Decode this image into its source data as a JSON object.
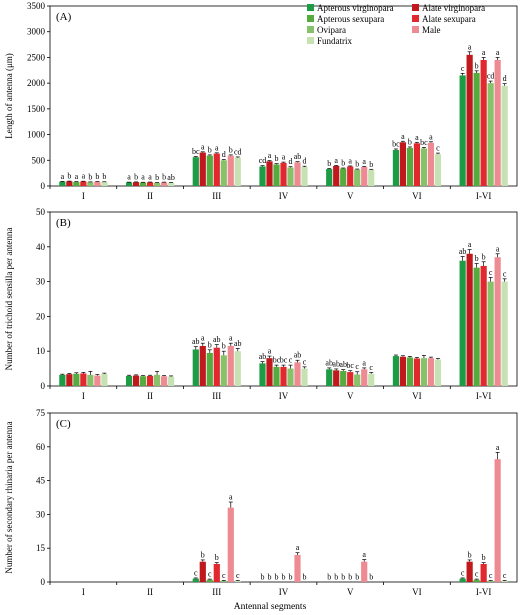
{
  "figure": {
    "xlabel": "Antennal segments"
  },
  "legend": [
    {
      "name": "Apterous virginopara",
      "color": "#1e9b45"
    },
    {
      "name": "Alate virginopara",
      "color": "#c0181d"
    },
    {
      "name": "Apterous sexupara",
      "color": "#55ab3d"
    },
    {
      "name": "Alate sexupara",
      "color": "#e2282f"
    },
    {
      "name": "Ovipara",
      "color": "#87c26b"
    },
    {
      "name": "Male",
      "color": "#ee8b92"
    },
    {
      "name": "Fundatrix",
      "color": "#c6e2b2"
    }
  ],
  "chart_data": [
    {
      "panel": "(A)",
      "type": "bar",
      "ylabel": "Length of antenna (μm)",
      "ylim": [
        0,
        3500
      ],
      "yticks": [
        0,
        500,
        1000,
        1500,
        2000,
        2500,
        3000,
        3500
      ],
      "categories": [
        "I",
        "II",
        "III",
        "IV",
        "V",
        "VI",
        "I-VI"
      ],
      "series": [
        {
          "name": "Apterous virginopara",
          "values": [
            85,
            70,
            560,
            380,
            330,
            700,
            2150
          ],
          "errors": [
            5,
            5,
            15,
            15,
            10,
            20,
            40
          ],
          "letters": [
            "a",
            "a",
            "bc",
            "cd",
            "b",
            "bc",
            "c"
          ]
        },
        {
          "name": "Alate virginopara",
          "values": [
            90,
            75,
            650,
            480,
            390,
            850,
            2550
          ],
          "errors": [
            5,
            5,
            15,
            15,
            10,
            20,
            60
          ],
          "letters": [
            "b",
            "b",
            "a",
            "a",
            "a",
            "a",
            "a"
          ]
        },
        {
          "name": "Apterous sexupara",
          "values": [
            80,
            68,
            590,
            420,
            340,
            740,
            2200
          ],
          "errors": [
            5,
            5,
            15,
            15,
            10,
            20,
            40
          ],
          "letters": [
            "a",
            "a",
            "b",
            "b",
            "b",
            "b",
            "b"
          ]
        },
        {
          "name": "Alate sexupara",
          "values": [
            88,
            72,
            630,
            450,
            380,
            830,
            2450
          ],
          "errors": [
            5,
            5,
            15,
            15,
            10,
            20,
            50
          ],
          "letters": [
            "a",
            "a",
            "a",
            "a",
            "a",
            "a",
            "a"
          ]
        },
        {
          "name": "Ovipara",
          "values": [
            75,
            62,
            500,
            360,
            320,
            730,
            2000
          ],
          "errors": [
            5,
            5,
            15,
            15,
            10,
            20,
            40
          ],
          "letters": [
            "b",
            "b",
            "d",
            "d",
            "b",
            "bc",
            "cd"
          ]
        },
        {
          "name": "Male",
          "values": [
            82,
            70,
            590,
            460,
            370,
            840,
            2450
          ],
          "errors": [
            5,
            5,
            15,
            15,
            10,
            20,
            50
          ],
          "letters": [
            "b",
            "b",
            "b",
            "ab",
            "a",
            "a",
            "a"
          ]
        },
        {
          "name": "Fundatrix",
          "values": [
            78,
            65,
            550,
            370,
            315,
            620,
            1950
          ],
          "errors": [
            5,
            5,
            15,
            15,
            10,
            20,
            40
          ],
          "letters": [
            "b",
            "ab",
            "cd",
            "d",
            "b",
            "c",
            "d"
          ]
        }
      ]
    },
    {
      "panel": "(B)",
      "type": "bar",
      "ylabel": "Number of trichoid sensilla per antenna",
      "ylim": [
        0,
        50
      ],
      "yticks": [
        0,
        10,
        20,
        30,
        40,
        50
      ],
      "categories": [
        "I",
        "II",
        "III",
        "IV",
        "V",
        "VI",
        "I-VI"
      ],
      "series": [
        {
          "name": "Apterous virginopara",
          "values": [
            3.2,
            2.9,
            10.5,
            6.5,
            4.8,
            8.6,
            36.0
          ],
          "errors": [
            0.2,
            0.2,
            0.8,
            0.5,
            0.4,
            0.3,
            1.2
          ],
          "letters": [
            "",
            "",
            "ab",
            "ab",
            "ab",
            "",
            "ab"
          ]
        },
        {
          "name": "Alate virginopara",
          "values": [
            3.4,
            3.0,
            11.5,
            8.0,
            4.5,
            8.4,
            38.0
          ],
          "errors": [
            0.2,
            0.2,
            0.8,
            0.6,
            0.4,
            0.3,
            1.2
          ],
          "letters": [
            "",
            "",
            "a",
            "a",
            "ab",
            "",
            "a"
          ]
        },
        {
          "name": "Apterous sexupara",
          "values": [
            3.5,
            2.8,
            9.5,
            5.5,
            4.3,
            8.2,
            34.0
          ],
          "errors": [
            0.3,
            0.2,
            0.9,
            0.5,
            0.4,
            0.3,
            1.2
          ],
          "letters": [
            "",
            "",
            "b",
            "bc",
            "ab",
            "",
            "b"
          ]
        },
        {
          "name": "Alate sexupara",
          "values": [
            3.6,
            2.9,
            11.0,
            5.5,
            4.0,
            7.9,
            34.5
          ],
          "errors": [
            0.3,
            0.2,
            0.9,
            0.5,
            0.4,
            0.3,
            1.2
          ],
          "letters": [
            "",
            "",
            "ab",
            "bc",
            "bc",
            "",
            "b"
          ]
        },
        {
          "name": "Ovipara",
          "values": [
            3.2,
            3.2,
            8.8,
            5.0,
            3.3,
            8.0,
            30.0
          ],
          "errors": [
            1.0,
            1.0,
            1.2,
            1.0,
            0.8,
            0.8,
            1.2
          ],
          "letters": [
            "",
            "",
            "b",
            "c",
            "c",
            "",
            "c"
          ]
        },
        {
          "name": "Male",
          "values": [
            3.0,
            2.8,
            11.5,
            6.8,
            4.8,
            8.0,
            37.0
          ],
          "errors": [
            0.3,
            0.2,
            0.8,
            0.6,
            0.4,
            0.3,
            1.0
          ],
          "letters": [
            "",
            "",
            "a",
            "ab",
            "a",
            "",
            "a"
          ]
        },
        {
          "name": "Fundatrix",
          "values": [
            3.5,
            2.7,
            10.0,
            5.0,
            3.5,
            7.6,
            30.0
          ],
          "errors": [
            0.2,
            0.2,
            0.8,
            0.5,
            0.4,
            0.3,
            0.8
          ],
          "letters": [
            "",
            "",
            "ab",
            "c",
            "c",
            "",
            "c"
          ]
        }
      ]
    },
    {
      "panel": "(C)",
      "type": "bar",
      "ylabel": "Number of secondary rhinaria per antenna",
      "ylim": [
        0,
        75
      ],
      "yticks": [
        0,
        15,
        30,
        45,
        60,
        75
      ],
      "categories": [
        "I",
        "II",
        "III",
        "IV",
        "V",
        "VI",
        "I-VI"
      ],
      "series": [
        {
          "name": "Apterous virginopara",
          "values": [
            0,
            0,
            1.5,
            0,
            0,
            0,
            1.5
          ],
          "errors": [
            0,
            0,
            0.3,
            0,
            0,
            0,
            0.3
          ],
          "letters": [
            "",
            "",
            "c",
            "b",
            "b",
            "",
            "c"
          ]
        },
        {
          "name": "Alate virginopara",
          "values": [
            0,
            0,
            9.0,
            0,
            0,
            0,
            9.0
          ],
          "errors": [
            0,
            0,
            0.8,
            0,
            0,
            0,
            0.8
          ],
          "letters": [
            "",
            "",
            "b",
            "b",
            "b",
            "",
            "b"
          ]
        },
        {
          "name": "Apterous sexupara",
          "values": [
            0,
            0,
            1.0,
            0,
            0,
            0,
            1.0
          ],
          "errors": [
            0,
            0,
            0.3,
            0,
            0,
            0,
            0.3
          ],
          "letters": [
            "",
            "",
            "c",
            "b",
            "b",
            "",
            "c"
          ]
        },
        {
          "name": "Alate sexupara",
          "values": [
            0,
            0,
            8.0,
            0,
            0,
            0,
            8.0
          ],
          "errors": [
            0,
            0,
            0.6,
            0,
            0,
            0,
            0.6
          ],
          "letters": [
            "",
            "",
            "b",
            "b",
            "b",
            "",
            "b"
          ]
        },
        {
          "name": "Ovipara",
          "values": [
            0,
            0,
            0.5,
            0,
            0,
            0,
            0.5
          ],
          "errors": [
            0,
            0,
            0.2,
            0,
            0,
            0,
            0.2
          ],
          "letters": [
            "",
            "",
            "c",
            "b",
            "b",
            "",
            "c"
          ]
        },
        {
          "name": "Male",
          "values": [
            0,
            0,
            33.0,
            12.0,
            9.0,
            0,
            54.5
          ],
          "errors": [
            0,
            0,
            2.5,
            1.0,
            1.0,
            0,
            3.0
          ],
          "letters": [
            "",
            "",
            "a",
            "a",
            "a",
            "",
            "a"
          ]
        },
        {
          "name": "Fundatrix",
          "values": [
            0,
            0,
            0.5,
            0,
            0,
            0,
            0.5
          ],
          "errors": [
            0,
            0,
            0.2,
            0,
            0,
            0,
            0.2
          ],
          "letters": [
            "",
            "",
            "c",
            "b",
            "b",
            "",
            "c"
          ]
        }
      ]
    }
  ]
}
